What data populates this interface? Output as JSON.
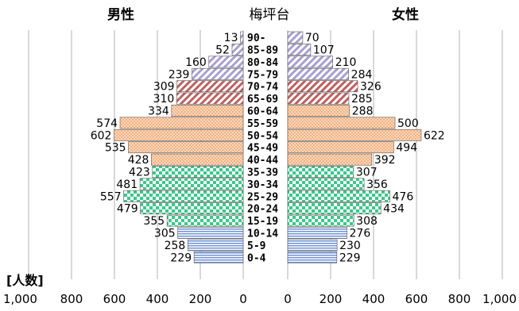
{
  "chart_data": {
    "type": "bar",
    "orientation": "horizontal",
    "layout": "population-pyramid",
    "title": "梅坪台",
    "unit_label": "[人数]",
    "left_header": "男性",
    "right_header": "女性",
    "categories": [
      "90-",
      "85-89",
      "80-84",
      "75-79",
      "70-74",
      "65-69",
      "60-64",
      "55-59",
      "50-54",
      "45-49",
      "40-44",
      "35-39",
      "30-34",
      "25-29",
      "20-24",
      "15-19",
      "10-14",
      "5-9",
      "0-4"
    ],
    "series": [
      {
        "name": "男性",
        "side": "left",
        "values": [
          13,
          52,
          160,
          239,
          309,
          310,
          334,
          574,
          602,
          535,
          428,
          423,
          481,
          557,
          479,
          355,
          305,
          258,
          229
        ]
      },
      {
        "name": "女性",
        "side": "right",
        "values": [
          70,
          107,
          210,
          284,
          326,
          285,
          288,
          500,
          622,
          494,
          392,
          307,
          356,
          476,
          434,
          308,
          276,
          230,
          229
        ]
      }
    ],
    "left_ticks": [
      "1,000",
      "800",
      "600",
      "400",
      "200",
      "0"
    ],
    "right_ticks": [
      "0",
      "200",
      "400",
      "600",
      "800",
      "1,000"
    ],
    "xlim": [
      0,
      1000
    ],
    "grid": true,
    "bands": [
      {
        "ages": [
          "90-",
          "85-89",
          "80-84",
          "75-79"
        ],
        "pattern": "diagonal-lavender",
        "color": "#8c7fb8"
      },
      {
        "ages": [
          "70-74",
          "65-69"
        ],
        "pattern": "diagonal-red",
        "color": "#b35a5a"
      },
      {
        "ages": [
          "60-64",
          "55-59",
          "50-54",
          "45-49",
          "40-44"
        ],
        "pattern": "dots-peach",
        "color": "#f4b183"
      },
      {
        "ages": [
          "35-39",
          "30-34",
          "25-29",
          "20-24",
          "15-19"
        ],
        "pattern": "checker-green",
        "color": "#3cc88a"
      },
      {
        "ages": [
          "10-14",
          "5-9",
          "0-4"
        ],
        "pattern": "hlines-blue",
        "color": "#6f93d6"
      }
    ]
  }
}
